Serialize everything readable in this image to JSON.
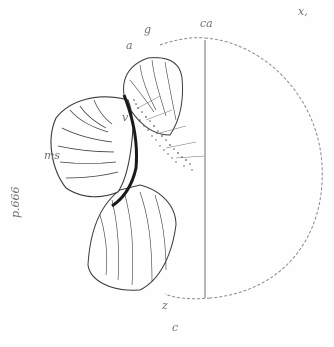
{
  "figure": {
    "labels": {
      "fig_number": "p.666",
      "upper_right_1": "x,",
      "upper_right_2": "ca",
      "left_margin": "ms",
      "top_a": "a",
      "top_b": "g",
      "inner_v": "v",
      "bottom_1": "z",
      "bottom_2": "c"
    },
    "colors": {
      "outline": "#3a3a3a",
      "circle": "#8a8a8a",
      "stipple": "#555555",
      "ink": "#1a1a1a"
    }
  }
}
